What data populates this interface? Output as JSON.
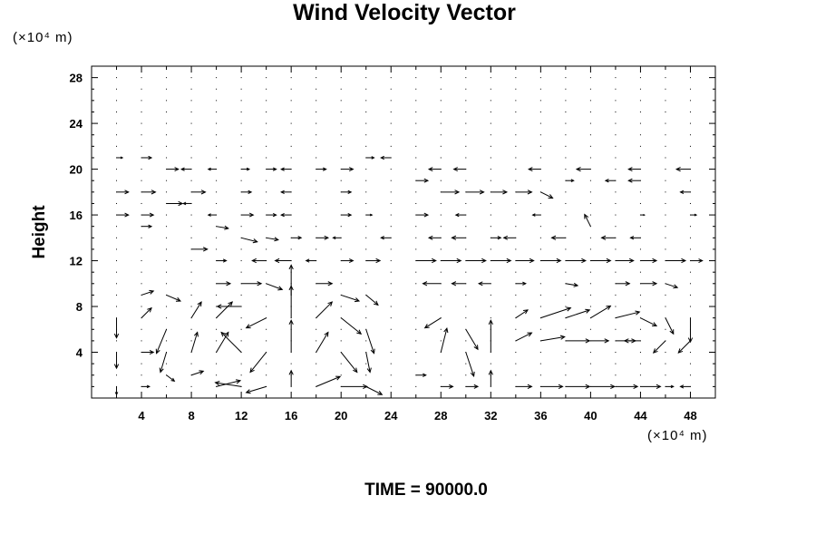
{
  "chart_data": {
    "type": "vector-field",
    "title": "Wind Velocity Vector",
    "ylabel": "Height",
    "y_unit": "(×10⁴ m)",
    "x_unit": "(×10⁴ m)",
    "footer": "TIME = 90000.0",
    "xlim": [
      0,
      50
    ],
    "ylim": [
      0,
      29
    ],
    "x_ticks": [
      "4",
      "8",
      "12",
      "16",
      "20",
      "24",
      "28",
      "32",
      "36",
      "40",
      "44",
      "48"
    ],
    "y_ticks": [
      "4",
      "8",
      "12",
      "16",
      "20",
      "24",
      "28"
    ],
    "grid": false,
    "vectors": [
      {
        "x": 2,
        "y": 21,
        "u": 0.3,
        "v": 0
      },
      {
        "x": 4,
        "y": 21,
        "u": 0.5,
        "v": 0
      },
      {
        "x": 6,
        "y": 20,
        "u": 0.6,
        "v": 0
      },
      {
        "x": 8,
        "y": 20,
        "u": -0.5,
        "v": 0
      },
      {
        "x": 10,
        "y": 20,
        "u": -0.4,
        "v": 0
      },
      {
        "x": 12,
        "y": 20,
        "u": 0.4,
        "v": 0
      },
      {
        "x": 14,
        "y": 20,
        "u": 0.5,
        "v": 0
      },
      {
        "x": 16,
        "y": 20,
        "u": -0.5,
        "v": 0
      },
      {
        "x": 18,
        "y": 20,
        "u": 0.5,
        "v": 0
      },
      {
        "x": 20,
        "y": 20,
        "u": 0.6,
        "v": 0
      },
      {
        "x": 22,
        "y": 21,
        "u": 0.4,
        "v": 0
      },
      {
        "x": 24,
        "y": 21,
        "u": -0.5,
        "v": 0
      },
      {
        "x": 28,
        "y": 20,
        "u": -0.6,
        "v": 0
      },
      {
        "x": 30,
        "y": 20,
        "u": -0.6,
        "v": 0
      },
      {
        "x": 36,
        "y": 20,
        "u": -0.6,
        "v": 0
      },
      {
        "x": 40,
        "y": 20,
        "u": -0.7,
        "v": 0
      },
      {
        "x": 44,
        "y": 20,
        "u": -0.6,
        "v": 0
      },
      {
        "x": 48,
        "y": 20,
        "u": -0.7,
        "v": 0
      },
      {
        "x": 2,
        "y": 18,
        "u": 0.6,
        "v": 0
      },
      {
        "x": 4,
        "y": 18,
        "u": 0.7,
        "v": 0
      },
      {
        "x": 8,
        "y": 18,
        "u": 0.7,
        "v": 0
      },
      {
        "x": 12,
        "y": 18,
        "u": 0.5,
        "v": 0
      },
      {
        "x": 16,
        "y": 18,
        "u": -0.5,
        "v": 0
      },
      {
        "x": 20,
        "y": 18,
        "u": 0.5,
        "v": 0
      },
      {
        "x": 26,
        "y": 19,
        "u": 0.6,
        "v": 0
      },
      {
        "x": 28,
        "y": 18,
        "u": 0.9,
        "v": 0
      },
      {
        "x": 30,
        "y": 18,
        "u": 0.9,
        "v": 0
      },
      {
        "x": 32,
        "y": 18,
        "u": 0.8,
        "v": 0
      },
      {
        "x": 34,
        "y": 18,
        "u": 0.8,
        "v": 0
      },
      {
        "x": 36,
        "y": 18,
        "u": 0.6,
        "v": -0.3
      },
      {
        "x": 38,
        "y": 19,
        "u": 0.4,
        "v": 0
      },
      {
        "x": 42,
        "y": 19,
        "u": -0.5,
        "v": 0
      },
      {
        "x": 44,
        "y": 19,
        "u": -0.6,
        "v": 0
      },
      {
        "x": 48,
        "y": 18,
        "u": -0.5,
        "v": 0
      },
      {
        "x": 2,
        "y": 16,
        "u": 0.6,
        "v": 0
      },
      {
        "x": 4,
        "y": 16,
        "u": 0.6,
        "v": 0
      },
      {
        "x": 6,
        "y": 17,
        "u": 0.8,
        "v": 0
      },
      {
        "x": 8,
        "y": 17,
        "u": -0.4,
        "v": 0
      },
      {
        "x": 10,
        "y": 16,
        "u": -0.4,
        "v": 0
      },
      {
        "x": 12,
        "y": 16,
        "u": 0.6,
        "v": 0
      },
      {
        "x": 14,
        "y": 16,
        "u": 0.5,
        "v": 0
      },
      {
        "x": 16,
        "y": 16,
        "u": -0.5,
        "v": 0
      },
      {
        "x": 20,
        "y": 16,
        "u": 0.5,
        "v": 0
      },
      {
        "x": 22,
        "y": 16,
        "u": 0.3,
        "v": 0
      },
      {
        "x": 26,
        "y": 16,
        "u": 0.6,
        "v": 0
      },
      {
        "x": 30,
        "y": 16,
        "u": -0.5,
        "v": 0
      },
      {
        "x": 36,
        "y": 16,
        "u": -0.4,
        "v": 0
      },
      {
        "x": 40,
        "y": 15,
        "u": -0.3,
        "v": 0.6
      },
      {
        "x": 44,
        "y": 16,
        "u": 0.2,
        "v": 0
      },
      {
        "x": 48,
        "y": 16,
        "u": 0.3,
        "v": 0
      },
      {
        "x": 4,
        "y": 15,
        "u": 0.5,
        "v": 0
      },
      {
        "x": 10,
        "y": 15,
        "u": 0.6,
        "v": -0.1
      },
      {
        "x": 12,
        "y": 14,
        "u": 0.8,
        "v": -0.2
      },
      {
        "x": 14,
        "y": 14,
        "u": 0.6,
        "v": -0.1
      },
      {
        "x": 16,
        "y": 14,
        "u": 0.5,
        "v": 0
      },
      {
        "x": 18,
        "y": 14,
        "u": 0.6,
        "v": 0
      },
      {
        "x": 20,
        "y": 14,
        "u": -0.4,
        "v": 0
      },
      {
        "x": 24,
        "y": 14,
        "u": -0.5,
        "v": 0
      },
      {
        "x": 28,
        "y": 14,
        "u": -0.6,
        "v": 0
      },
      {
        "x": 30,
        "y": 14,
        "u": -0.7,
        "v": 0
      },
      {
        "x": 32,
        "y": 14,
        "u": 0.5,
        "v": 0
      },
      {
        "x": 34,
        "y": 14,
        "u": -0.6,
        "v": 0
      },
      {
        "x": 38,
        "y": 14,
        "u": -0.7,
        "v": 0
      },
      {
        "x": 42,
        "y": 14,
        "u": -0.7,
        "v": 0
      },
      {
        "x": 44,
        "y": 14,
        "u": -0.5,
        "v": 0
      },
      {
        "x": 8,
        "y": 13,
        "u": 0.8,
        "v": 0
      },
      {
        "x": 10,
        "y": 12,
        "u": 0.5,
        "v": 0
      },
      {
        "x": 14,
        "y": 12,
        "u": -0.7,
        "v": 0
      },
      {
        "x": 16,
        "y": 12,
        "u": -0.8,
        "v": 0
      },
      {
        "x": 18,
        "y": 12,
        "u": -0.5,
        "v": 0
      },
      {
        "x": 20,
        "y": 12,
        "u": 0.6,
        "v": 0
      },
      {
        "x": 22,
        "y": 12,
        "u": 0.7,
        "v": 0
      },
      {
        "x": 26,
        "y": 12,
        "u": 1.0,
        "v": 0
      },
      {
        "x": 28,
        "y": 12,
        "u": 1.0,
        "v": 0
      },
      {
        "x": 30,
        "y": 12,
        "u": 1.0,
        "v": 0
      },
      {
        "x": 32,
        "y": 12,
        "u": 1.0,
        "v": 0
      },
      {
        "x": 34,
        "y": 12,
        "u": 0.9,
        "v": 0
      },
      {
        "x": 36,
        "y": 12,
        "u": 1.0,
        "v": 0
      },
      {
        "x": 38,
        "y": 12,
        "u": 1.0,
        "v": 0
      },
      {
        "x": 40,
        "y": 12,
        "u": 1.0,
        "v": 0
      },
      {
        "x": 42,
        "y": 12,
        "u": 0.9,
        "v": 0
      },
      {
        "x": 44,
        "y": 12,
        "u": 0.8,
        "v": 0
      },
      {
        "x": 46,
        "y": 12,
        "u": 1.0,
        "v": 0
      },
      {
        "x": 48,
        "y": 12,
        "u": 0.6,
        "v": 0
      },
      {
        "x": 4,
        "y": 9,
        "u": 0.6,
        "v": 0.2
      },
      {
        "x": 6,
        "y": 9,
        "u": 0.7,
        "v": -0.3
      },
      {
        "x": 10,
        "y": 10,
        "u": 0.7,
        "v": 0
      },
      {
        "x": 12,
        "y": 10,
        "u": 1.0,
        "v": 0
      },
      {
        "x": 14,
        "y": 10,
        "u": 0.8,
        "v": -0.3
      },
      {
        "x": 16,
        "y": 9,
        "u": 0.0,
        "v": 1.5
      },
      {
        "x": 18,
        "y": 10,
        "u": 0.8,
        "v": 0
      },
      {
        "x": 20,
        "y": 9,
        "u": 0.9,
        "v": -0.3
      },
      {
        "x": 22,
        "y": 9,
        "u": 0.6,
        "v": -0.5
      },
      {
        "x": 28,
        "y": 10,
        "u": -0.9,
        "v": 0
      },
      {
        "x": 30,
        "y": 10,
        "u": -0.7,
        "v": 0
      },
      {
        "x": 32,
        "y": 10,
        "u": -0.6,
        "v": 0
      },
      {
        "x": 34,
        "y": 10,
        "u": 0.5,
        "v": 0
      },
      {
        "x": 38,
        "y": 10,
        "u": 0.6,
        "v": -0.1
      },
      {
        "x": 42,
        "y": 10,
        "u": 0.7,
        "v": 0
      },
      {
        "x": 44,
        "y": 10,
        "u": 0.8,
        "v": 0
      },
      {
        "x": 46,
        "y": 10,
        "u": 0.6,
        "v": -0.2
      },
      {
        "x": 2,
        "y": 7,
        "u": 0.0,
        "v": -1.0
      },
      {
        "x": 4,
        "y": 7,
        "u": 0.5,
        "v": 0.5
      },
      {
        "x": 6,
        "y": 6,
        "u": -0.5,
        "v": -1.2
      },
      {
        "x": 8,
        "y": 7,
        "u": 0.5,
        "v": 0.8
      },
      {
        "x": 10,
        "y": 7,
        "u": 0.8,
        "v": 0.8
      },
      {
        "x": 12,
        "y": 8,
        "u": -1.2,
        "v": 0
      },
      {
        "x": 14,
        "y": 7,
        "u": -1.0,
        "v": -0.5
      },
      {
        "x": 16,
        "y": 7,
        "u": 0.0,
        "v": 1.6
      },
      {
        "x": 18,
        "y": 7,
        "u": 0.8,
        "v": 0.8
      },
      {
        "x": 20,
        "y": 7,
        "u": 1.0,
        "v": -0.8
      },
      {
        "x": 22,
        "y": 6,
        "u": 0.4,
        "v": -1.2
      },
      {
        "x": 28,
        "y": 7,
        "u": -0.8,
        "v": -0.5
      },
      {
        "x": 30,
        "y": 6,
        "u": 0.6,
        "v": -1.0
      },
      {
        "x": 34,
        "y": 7,
        "u": 0.6,
        "v": 0.4
      },
      {
        "x": 36,
        "y": 7,
        "u": 1.5,
        "v": 0.5
      },
      {
        "x": 38,
        "y": 7,
        "u": 1.2,
        "v": 0.4
      },
      {
        "x": 40,
        "y": 7,
        "u": 1.0,
        "v": 0.6
      },
      {
        "x": 42,
        "y": 7,
        "u": 1.2,
        "v": 0.3
      },
      {
        "x": 44,
        "y": 7,
        "u": 0.8,
        "v": -0.4
      },
      {
        "x": 46,
        "y": 7,
        "u": 0.4,
        "v": -0.8
      },
      {
        "x": 48,
        "y": 7,
        "u": 0.0,
        "v": -1.2
      },
      {
        "x": 2,
        "y": 4,
        "u": 0.0,
        "v": -0.8
      },
      {
        "x": 4,
        "y": 4,
        "u": 0.6,
        "v": 0
      },
      {
        "x": 6,
        "y": 4,
        "u": -0.3,
        "v": -1.0
      },
      {
        "x": 8,
        "y": 4,
        "u": 0.3,
        "v": 1.0
      },
      {
        "x": 10,
        "y": 4,
        "u": 0.6,
        "v": 1.0
      },
      {
        "x": 12,
        "y": 4,
        "u": -1.0,
        "v": 1.0
      },
      {
        "x": 14,
        "y": 4,
        "u": -0.8,
        "v": -1.0
      },
      {
        "x": 16,
        "y": 4,
        "u": 0.0,
        "v": 1.6
      },
      {
        "x": 18,
        "y": 4,
        "u": 0.6,
        "v": 1.0
      },
      {
        "x": 20,
        "y": 4,
        "u": 0.8,
        "v": -1.0
      },
      {
        "x": 22,
        "y": 4,
        "u": 0.2,
        "v": -1.0
      },
      {
        "x": 28,
        "y": 4,
        "u": 0.3,
        "v": 1.2
      },
      {
        "x": 30,
        "y": 4,
        "u": 0.4,
        "v": -1.2
      },
      {
        "x": 32,
        "y": 4,
        "u": 0.0,
        "v": 1.6
      },
      {
        "x": 34,
        "y": 5,
        "u": 0.8,
        "v": 0.4
      },
      {
        "x": 36,
        "y": 5,
        "u": 1.2,
        "v": 0.2
      },
      {
        "x": 38,
        "y": 5,
        "u": 1.2,
        "v": 0
      },
      {
        "x": 40,
        "y": 5,
        "u": 0.9,
        "v": 0
      },
      {
        "x": 42,
        "y": 5,
        "u": 1.0,
        "v": 0
      },
      {
        "x": 44,
        "y": 5,
        "u": -0.8,
        "v": 0
      },
      {
        "x": 46,
        "y": 5,
        "u": -0.6,
        "v": -0.6
      },
      {
        "x": 48,
        "y": 5,
        "u": -0.6,
        "v": -0.6
      },
      {
        "x": 2,
        "y": 1,
        "u": 0.0,
        "v": -0.4
      },
      {
        "x": 4,
        "y": 1,
        "u": 0.4,
        "v": 0
      },
      {
        "x": 6,
        "y": 2,
        "u": 0.4,
        "v": -0.3
      },
      {
        "x": 8,
        "y": 2,
        "u": 0.6,
        "v": 0.2
      },
      {
        "x": 10,
        "y": 1,
        "u": 1.2,
        "v": 0.3
      },
      {
        "x": 12,
        "y": 1,
        "u": -1.3,
        "v": 0.2
      },
      {
        "x": 14,
        "y": 1,
        "u": -1.0,
        "v": -0.3
      },
      {
        "x": 16,
        "y": 1,
        "u": 0.0,
        "v": 0.8
      },
      {
        "x": 18,
        "y": 1,
        "u": 1.2,
        "v": 0.5
      },
      {
        "x": 20,
        "y": 1,
        "u": 1.3,
        "v": 0
      },
      {
        "x": 22,
        "y": 1,
        "u": 0.8,
        "v": -0.4
      },
      {
        "x": 26,
        "y": 2,
        "u": 0.5,
        "v": 0
      },
      {
        "x": 28,
        "y": 1,
        "u": 0.6,
        "v": 0
      },
      {
        "x": 30,
        "y": 1,
        "u": 0.6,
        "v": 0
      },
      {
        "x": 32,
        "y": 1,
        "u": 0.0,
        "v": 0.8
      },
      {
        "x": 34,
        "y": 1,
        "u": 0.8,
        "v": 0
      },
      {
        "x": 36,
        "y": 1,
        "u": 1.1,
        "v": 0
      },
      {
        "x": 38,
        "y": 1,
        "u": 1.2,
        "v": 0
      },
      {
        "x": 40,
        "y": 1,
        "u": 1.2,
        "v": 0
      },
      {
        "x": 42,
        "y": 1,
        "u": 1.1,
        "v": 0
      },
      {
        "x": 44,
        "y": 1,
        "u": 1.0,
        "v": 0
      },
      {
        "x": 46,
        "y": 1,
        "u": 0.4,
        "v": 0
      },
      {
        "x": 48,
        "y": 1,
        "u": -0.5,
        "v": 0
      }
    ]
  }
}
